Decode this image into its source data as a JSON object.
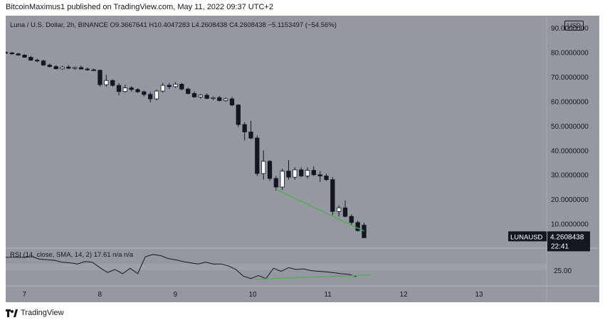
{
  "header": {
    "publisher": "BitcoinMaximus1",
    "published_text": "published on TradingView.com, May 11, 2022 09:37 UTC+2"
  },
  "legend": {
    "symbol_desc": "Luna / U.S. Dollar, 2h, BINANCE",
    "open_label": "O",
    "open_value": "9.3667641",
    "high_label": "H",
    "high_value": "10.4047283",
    "low_label": "L",
    "low_value": "4.2608438",
    "close_label": "C",
    "close_value": "4.2608438",
    "change": "−5.1153497 (−54.56%)"
  },
  "currency_badge": "USD",
  "price_tag": {
    "symbol": "LUNAUSD",
    "price": "4.2608438",
    "countdown": "22:41"
  },
  "rsi_legend": "RSI (14, close, SMA, 14, 2)  17.61  n/a  n/a",
  "footer": {
    "brand": "TradingView"
  },
  "colors": {
    "background": "#9598a1",
    "up_candle": "#ffffff",
    "down_candle": "#131722",
    "trendline": "#4caf50",
    "axis_text": "#131722",
    "rsi_band": "#a6a9b0",
    "price_tag_bg": "#131722"
  },
  "chart_data": [
    {
      "type": "candlestick",
      "title": "Luna / U.S. Dollar, 2h, BINANCE",
      "ylabel": "USD",
      "ylim": [
        0,
        95
      ],
      "y_ticks": [
        10,
        20,
        30,
        40,
        50,
        60,
        70,
        80,
        90
      ],
      "y_tick_labels": [
        "10.0000000",
        "20.0000000",
        "30.0000000",
        "40.0000000",
        "50.0000000",
        "60.0000000",
        "70.0000000",
        "80.0000000",
        "90.0000000"
      ],
      "x_ticks": [
        7,
        8,
        9,
        10,
        11,
        12,
        13
      ],
      "x_tick_labels": [
        "7",
        "8",
        "9",
        "10",
        "11",
        "12",
        "13"
      ],
      "x_range_days": [
        6.75,
        13.92
      ],
      "candles": [
        {
          "t": 6.75,
          "o": 80.0,
          "h": 80.6,
          "l": 79.5,
          "c": 79.8
        },
        {
          "t": 6.833,
          "o": 79.8,
          "h": 80.2,
          "l": 79.0,
          "c": 79.4
        },
        {
          "t": 6.917,
          "o": 79.4,
          "h": 79.8,
          "l": 78.6,
          "c": 78.9
        },
        {
          "t": 7.0,
          "o": 78.9,
          "h": 79.2,
          "l": 77.8,
          "c": 78.0
        },
        {
          "t": 7.083,
          "o": 78.0,
          "h": 78.5,
          "l": 76.5,
          "c": 76.8
        },
        {
          "t": 7.167,
          "o": 76.8,
          "h": 77.5,
          "l": 76.0,
          "c": 76.5
        },
        {
          "t": 7.25,
          "o": 76.5,
          "h": 77.0,
          "l": 74.5,
          "c": 74.8
        },
        {
          "t": 7.333,
          "o": 74.8,
          "h": 75.5,
          "l": 73.8,
          "c": 74.2
        },
        {
          "t": 7.417,
          "o": 74.2,
          "h": 74.8,
          "l": 73.0,
          "c": 73.3
        },
        {
          "t": 7.5,
          "o": 73.3,
          "h": 74.5,
          "l": 72.8,
          "c": 74.0
        },
        {
          "t": 7.583,
          "o": 74.0,
          "h": 74.8,
          "l": 73.2,
          "c": 73.5
        },
        {
          "t": 7.667,
          "o": 73.5,
          "h": 74.2,
          "l": 72.9,
          "c": 73.8
        },
        {
          "t": 7.75,
          "o": 73.8,
          "h": 74.6,
          "l": 73.0,
          "c": 73.2
        },
        {
          "t": 7.833,
          "o": 73.2,
          "h": 73.8,
          "l": 72.5,
          "c": 72.9
        },
        {
          "t": 7.917,
          "o": 72.9,
          "h": 73.4,
          "l": 72.4,
          "c": 72.7
        },
        {
          "t": 8.0,
          "o": 72.7,
          "h": 72.9,
          "l": 66.0,
          "c": 66.8
        },
        {
          "t": 8.083,
          "o": 66.8,
          "h": 70.8,
          "l": 66.0,
          "c": 68.5
        },
        {
          "t": 8.167,
          "o": 68.5,
          "h": 69.0,
          "l": 66.0,
          "c": 66.5
        },
        {
          "t": 8.25,
          "o": 66.5,
          "h": 67.5,
          "l": 62.5,
          "c": 64.0
        },
        {
          "t": 8.333,
          "o": 64.0,
          "h": 66.8,
          "l": 63.5,
          "c": 65.5
        },
        {
          "t": 8.417,
          "o": 65.5,
          "h": 66.2,
          "l": 64.0,
          "c": 64.8
        },
        {
          "t": 8.5,
          "o": 64.8,
          "h": 65.4,
          "l": 63.5,
          "c": 63.9
        },
        {
          "t": 8.583,
          "o": 63.9,
          "h": 64.4,
          "l": 62.0,
          "c": 62.8
        },
        {
          "t": 8.667,
          "o": 62.8,
          "h": 63.8,
          "l": 59.5,
          "c": 61.0
        },
        {
          "t": 8.75,
          "o": 61.0,
          "h": 64.8,
          "l": 60.5,
          "c": 64.2
        },
        {
          "t": 8.833,
          "o": 64.2,
          "h": 67.5,
          "l": 63.5,
          "c": 66.5
        },
        {
          "t": 8.917,
          "o": 66.5,
          "h": 67.5,
          "l": 65.0,
          "c": 66.0
        },
        {
          "t": 9.0,
          "o": 66.0,
          "h": 67.8,
          "l": 65.5,
          "c": 67.0
        },
        {
          "t": 9.083,
          "o": 67.0,
          "h": 67.5,
          "l": 64.5,
          "c": 65.0
        },
        {
          "t": 9.167,
          "o": 65.0,
          "h": 65.6,
          "l": 62.8,
          "c": 63.2
        },
        {
          "t": 9.25,
          "o": 63.2,
          "h": 64.0,
          "l": 61.5,
          "c": 61.8
        },
        {
          "t": 9.333,
          "o": 61.8,
          "h": 63.0,
          "l": 61.0,
          "c": 62.5
        },
        {
          "t": 9.417,
          "o": 62.5,
          "h": 63.3,
          "l": 60.8,
          "c": 61.2
        },
        {
          "t": 9.5,
          "o": 61.2,
          "h": 62.0,
          "l": 60.5,
          "c": 61.5
        },
        {
          "t": 9.583,
          "o": 61.5,
          "h": 62.2,
          "l": 60.0,
          "c": 60.3
        },
        {
          "t": 9.667,
          "o": 60.3,
          "h": 61.5,
          "l": 59.8,
          "c": 61.0
        },
        {
          "t": 9.75,
          "o": 61.0,
          "h": 61.8,
          "l": 58.0,
          "c": 58.5
        },
        {
          "t": 9.833,
          "o": 58.5,
          "h": 58.8,
          "l": 49.5,
          "c": 50.5
        },
        {
          "t": 9.917,
          "o": 50.5,
          "h": 51.5,
          "l": 44.0,
          "c": 47.5
        },
        {
          "t": 10.0,
          "o": 47.5,
          "h": 52.0,
          "l": 44.5,
          "c": 45.0
        },
        {
          "t": 10.083,
          "o": 45.0,
          "h": 46.0,
          "l": 29.5,
          "c": 30.5
        },
        {
          "t": 10.167,
          "o": 30.5,
          "h": 40.0,
          "l": 28.0,
          "c": 35.5
        },
        {
          "t": 10.25,
          "o": 35.5,
          "h": 36.0,
          "l": 27.5,
          "c": 28.5
        },
        {
          "t": 10.333,
          "o": 28.5,
          "h": 29.5,
          "l": 23.5,
          "c": 25.0
        },
        {
          "t": 10.417,
          "o": 25.0,
          "h": 32.5,
          "l": 23.8,
          "c": 31.5
        },
        {
          "t": 10.5,
          "o": 31.5,
          "h": 36.0,
          "l": 28.0,
          "c": 29.0
        },
        {
          "t": 10.583,
          "o": 29.0,
          "h": 33.0,
          "l": 28.0,
          "c": 32.0
        },
        {
          "t": 10.667,
          "o": 32.0,
          "h": 33.0,
          "l": 29.0,
          "c": 29.5
        },
        {
          "t": 10.75,
          "o": 29.5,
          "h": 33.0,
          "l": 28.5,
          "c": 31.8
        },
        {
          "t": 10.833,
          "o": 31.8,
          "h": 33.5,
          "l": 29.5,
          "c": 30.0
        },
        {
          "t": 10.917,
          "o": 30.0,
          "h": 31.5,
          "l": 27.0,
          "c": 29.5
        },
        {
          "t": 11.0,
          "o": 29.5,
          "h": 30.5,
          "l": 27.5,
          "c": 28.0
        },
        {
          "t": 11.083,
          "o": 28.0,
          "h": 29.0,
          "l": 13.5,
          "c": 15.0
        },
        {
          "t": 11.167,
          "o": 15.0,
          "h": 17.5,
          "l": 13.0,
          "c": 16.5
        },
        {
          "t": 11.25,
          "o": 16.5,
          "h": 19.5,
          "l": 12.5,
          "c": 13.0
        },
        {
          "t": 11.333,
          "o": 13.0,
          "h": 13.8,
          "l": 9.5,
          "c": 10.5
        },
        {
          "t": 11.417,
          "o": 10.5,
          "h": 11.2,
          "l": 6.8,
          "c": 7.2
        },
        {
          "t": 11.5,
          "o": 9.4,
          "h": 10.4,
          "l": 4.26,
          "c": 4.26
        }
      ],
      "trendline": [
        {
          "t": 10.333,
          "v": 24.0
        },
        {
          "t": 11.5,
          "v": 7.0
        }
      ]
    },
    {
      "type": "line",
      "title": "RSI (14, close, SMA, 14, 2)",
      "ylim": [
        12,
        43
      ],
      "y_ticks": [
        25
      ],
      "y_tick_labels": [
        "25.00"
      ],
      "band": [
        25,
        30
      ],
      "x": [
        6.75,
        6.9,
        7.0,
        7.1,
        7.2,
        7.3,
        7.4,
        7.5,
        7.6,
        7.7,
        7.8,
        7.9,
        8.0,
        8.1,
        8.2,
        8.3,
        8.4,
        8.5,
        8.6,
        8.7,
        8.8,
        8.9,
        9.0,
        9.1,
        9.2,
        9.3,
        9.4,
        9.5,
        9.6,
        9.7,
        9.8,
        9.9,
        10.0,
        10.1,
        10.2,
        10.3,
        10.4,
        10.5,
        10.6,
        10.7,
        10.8,
        10.9,
        11.0,
        11.1,
        11.2,
        11.3,
        11.4
      ],
      "values": [
        35.5,
        35.5,
        35.5,
        36,
        34,
        33.5,
        33,
        31.5,
        31,
        30,
        32,
        31.5,
        27,
        23,
        25.5,
        22,
        26.5,
        22,
        36,
        37.8,
        37,
        34.5,
        33.5,
        32,
        31,
        30,
        31.5,
        30,
        30,
        28.5,
        25.5,
        20,
        18,
        20.5,
        18,
        26.5,
        24,
        27,
        25.5,
        26,
        24.5,
        24,
        23.5,
        22.8,
        22,
        21.5,
        19.5
      ],
      "trendline": [
        {
          "t": 10.05,
          "v": 17.5
        },
        {
          "t": 11.6,
          "v": 21.0
        }
      ]
    }
  ]
}
